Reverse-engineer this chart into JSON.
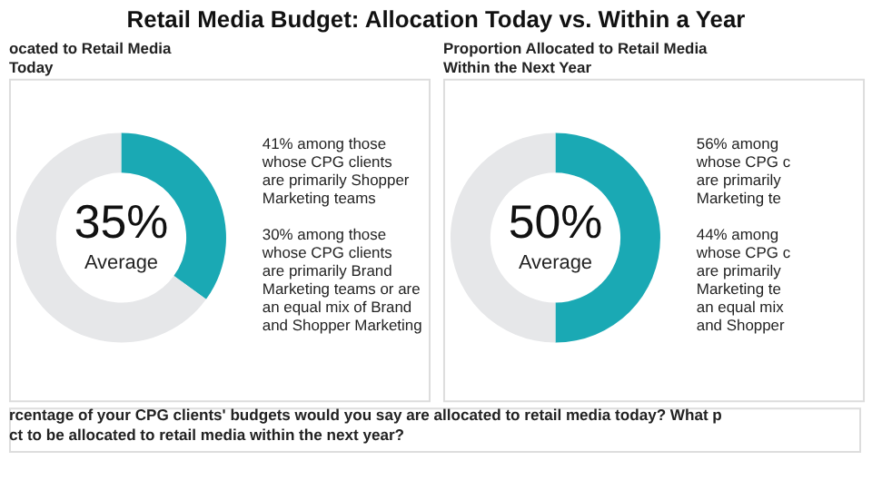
{
  "chart_data": [
    {
      "type": "donut",
      "title": "Retail Media Budget: Allocation Today vs. Within a Year",
      "subtitle": "ocated to Retail Media\nToday",
      "categories": [
        null,
        null
      ],
      "values": [
        35,
        65
      ],
      "colors": [
        "#1aa9b4",
        "#e6e7e9"
      ],
      "value_labels": [
        "35%",
        null
      ],
      "annotations": [
        "Average",
        "41% among those\nwhose CPG clients\nare primarily Shopper\nMarketing teams",
        "30% among those\nwhose CPG clients\nare primarily Brand\nMarketing teams or are\nan equal mix of Brand\nand Shopper Marketing",
        "rcentage of your CPG clients' budgets would you say are allocated to retail media today? What p\nct to be allocated to retail media within the next year?"
      ]
    },
    {
      "type": "donut",
      "subtitle": "Proportion Allocated to Retail Media\nWithin the Next Year",
      "categories": [
        null,
        null
      ],
      "values": [
        50,
        50
      ],
      "colors": [
        "#1aa9b4",
        "#e6e7e9"
      ],
      "value_labels": [
        "50%",
        null
      ],
      "annotations": [
        "Average",
        "56% among\nwhose CPG c\nare primarily\nMarketing te",
        "44% among\nwhose CPG c\nare primarily\nMarketing te\nan equal mix\nand Shopper"
      ]
    }
  ]
}
